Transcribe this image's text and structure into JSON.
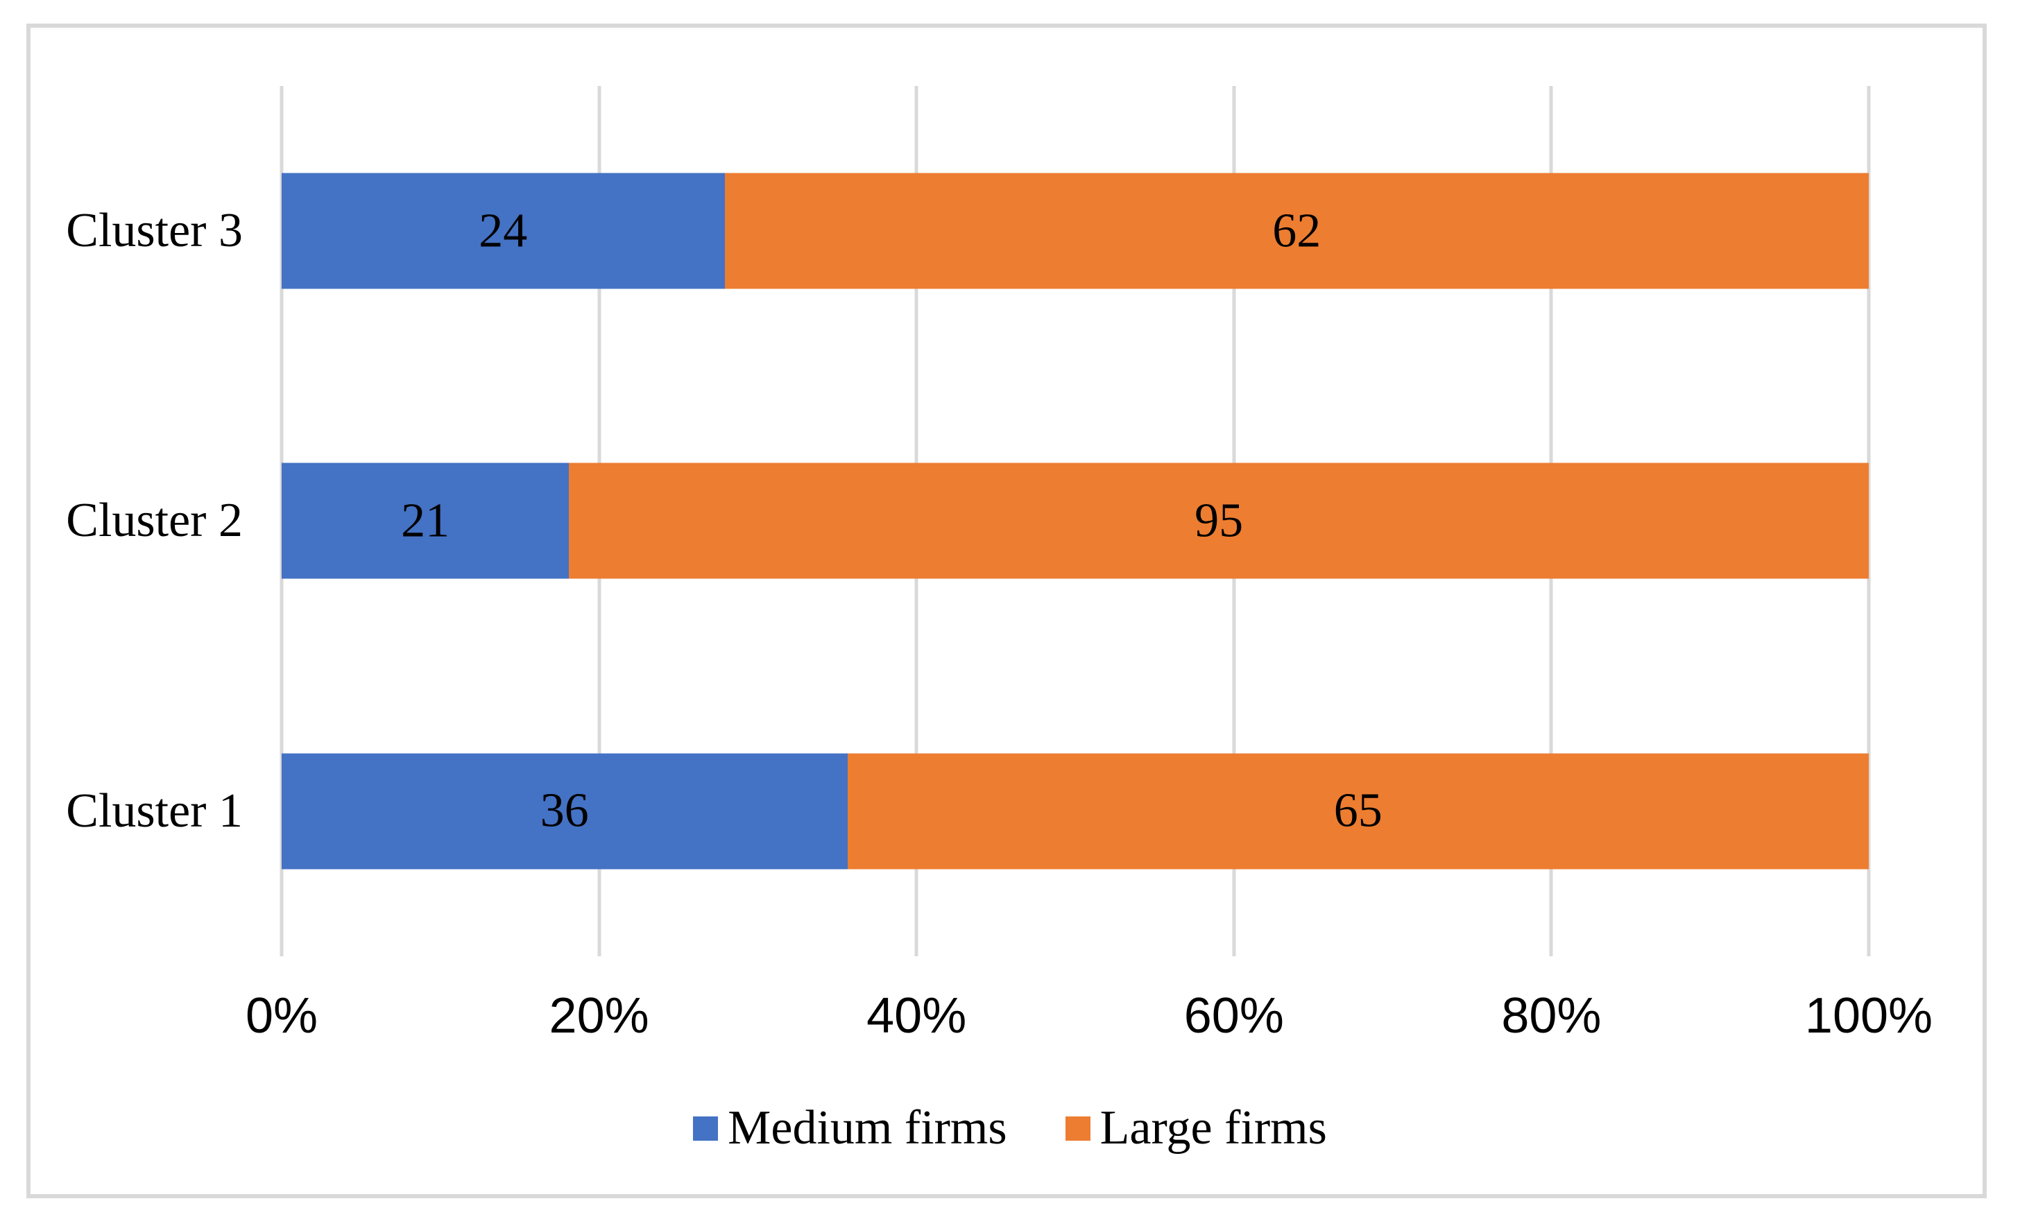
{
  "chart_data": {
    "type": "bar",
    "orientation": "horizontal",
    "stacking": "100%",
    "categories": [
      "Cluster 1",
      "Cluster 2",
      "Cluster 3"
    ],
    "series": [
      {
        "name": "Medium firms",
        "color": "#4472C4",
        "values": [
          36,
          21,
          24
        ]
      },
      {
        "name": "Large firms",
        "color": "#ED7D31",
        "values": [
          65,
          95,
          62
        ]
      }
    ],
    "row_display_indices": [
      2,
      1,
      0
    ],
    "x_ticks": [
      "0%",
      "20%",
      "40%",
      "60%",
      "80%",
      "100%"
    ],
    "xlim": [
      0,
      1
    ],
    "grid": "vertical-only",
    "legend_position": "bottom-center",
    "title": "",
    "xlabel": "",
    "ylabel": "",
    "colors": {
      "gridline": "#D9D9D9",
      "frame_border": "#D9D9D9",
      "text": "#000000",
      "background": "#FFFFFF"
    }
  }
}
